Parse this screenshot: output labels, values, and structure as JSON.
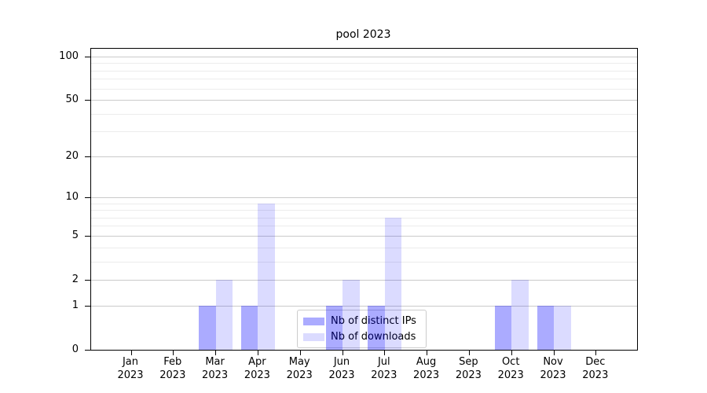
{
  "title": "pool 2023",
  "background_color": "#ffffff",
  "chart_data": {
    "type": "bar",
    "title": "pool 2023",
    "categories": [
      "Jan 2023",
      "Feb 2023",
      "Mar 2023",
      "Apr 2023",
      "May 2023",
      "Jun 2023",
      "Jul 2023",
      "Aug 2023",
      "Sep 2023",
      "Oct 2023",
      "Nov 2023",
      "Dec 2023"
    ],
    "series": [
      {
        "name": "Nb of distinct IPs",
        "color": "rgba(0,0,255,0.33)",
        "values": [
          0,
          0,
          1,
          1,
          0,
          1,
          1,
          0,
          0,
          1,
          1,
          0
        ]
      },
      {
        "name": "Nb of downloads",
        "color": "rgba(0,0,255,0.14)",
        "values": [
          0,
          0,
          2,
          9,
          0,
          2,
          7,
          0,
          0,
          2,
          1,
          0
        ]
      }
    ],
    "xlabel": "",
    "ylabel": "",
    "y_scale": "log1p",
    "ylim": [
      0,
      113
    ],
    "y_ticks": [
      0,
      1,
      2,
      5,
      10,
      20,
      50,
      100
    ],
    "y_minor_ticks": [
      3,
      4,
      6,
      7,
      8,
      9,
      30,
      40,
      60,
      70,
      80,
      90
    ],
    "grid": "on",
    "major_grid_color": "#cacaca",
    "minor_grid_color": "#ececec",
    "legend_position": "lower center",
    "legend_entries": [
      "Nb of distinct IPs",
      "Nb of downloads"
    ]
  }
}
